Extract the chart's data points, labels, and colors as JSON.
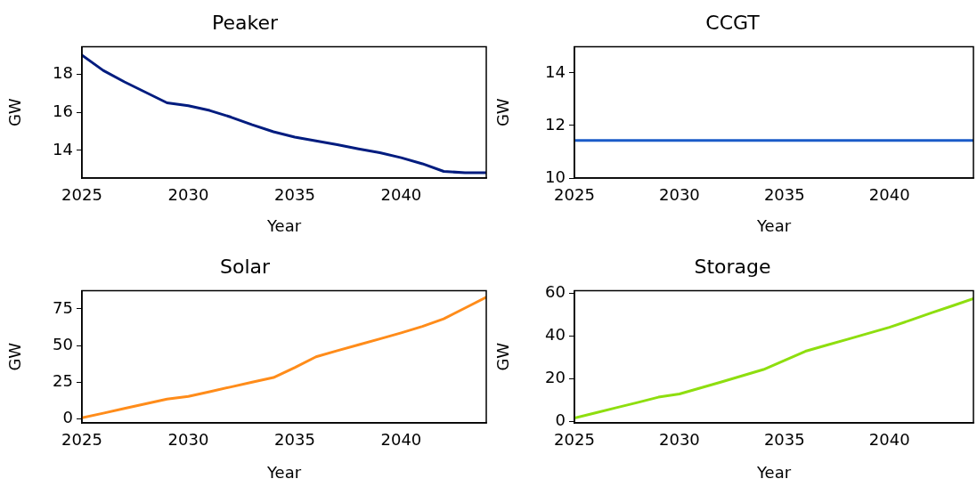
{
  "chart_data": [
    {
      "type": "line",
      "title": "Peaker",
      "xlabel": "Year",
      "ylabel": "GW",
      "x": [
        2025,
        2026,
        2027,
        2028,
        2029,
        2030,
        2031,
        2032,
        2033,
        2034,
        2035,
        2036,
        2037,
        2038,
        2039,
        2040,
        2041,
        2042,
        2043,
        2044
      ],
      "xlim": [
        2025,
        2044
      ],
      "xticks": [
        2025,
        2030,
        2035,
        2040
      ],
      "ylim": [
        12.55,
        19.45
      ],
      "yticks": [
        14,
        16,
        18
      ],
      "grid": false,
      "legend": false,
      "series": [
        {
          "color": "#001c7f",
          "values": [
            19.0,
            18.2,
            17.6,
            17.05,
            16.5,
            16.35,
            16.1,
            15.75,
            15.35,
            14.98,
            14.7,
            14.5,
            14.3,
            14.08,
            13.88,
            13.62,
            13.3,
            12.9,
            12.83,
            12.83
          ]
        }
      ]
    },
    {
      "type": "line",
      "title": "CCGT",
      "xlabel": "Year",
      "ylabel": "GW",
      "x": [
        2025,
        2026,
        2027,
        2028,
        2029,
        2030,
        2031,
        2032,
        2033,
        2034,
        2035,
        2036,
        2037,
        2038,
        2039,
        2040,
        2041,
        2042,
        2043,
        2044
      ],
      "xlim": [
        2025,
        2044
      ],
      "xticks": [
        2025,
        2030,
        2035,
        2040
      ],
      "ylim": [
        10,
        15
      ],
      "yticks": [
        10,
        12,
        14
      ],
      "grid": false,
      "legend": false,
      "series": [
        {
          "color": "#1a5bc8",
          "values": [
            11.43,
            11.43,
            11.43,
            11.43,
            11.43,
            11.43,
            11.43,
            11.43,
            11.43,
            11.43,
            11.43,
            11.43,
            11.43,
            11.43,
            11.43,
            11.43,
            11.43,
            11.43,
            11.43,
            11.43
          ]
        }
      ]
    },
    {
      "type": "line",
      "title": "Solar",
      "xlabel": "Year",
      "ylabel": "GW",
      "x": [
        2025,
        2026,
        2027,
        2028,
        2029,
        2030,
        2031,
        2032,
        2033,
        2034,
        2035,
        2036,
        2037,
        2038,
        2039,
        2040,
        2041,
        2042,
        2043,
        2044
      ],
      "xlim": [
        2025,
        2044
      ],
      "xticks": [
        2025,
        2030,
        2035,
        2040
      ],
      "ylim": [
        -2.7,
        87.4
      ],
      "yticks": [
        0,
        25,
        50,
        75
      ],
      "grid": false,
      "legend": false,
      "series": [
        {
          "color": "#ff8c1a",
          "values": [
            0.7,
            3.9,
            7.1,
            10.3,
            13.5,
            15.3,
            18.5,
            21.8,
            25,
            28.2,
            35,
            42.3,
            46.5,
            50.5,
            54.5,
            58.6,
            63,
            68.2,
            75.5,
            82.9
          ]
        }
      ]
    },
    {
      "type": "line",
      "title": "Storage",
      "xlabel": "Year",
      "ylabel": "GW",
      "x": [
        2025,
        2026,
        2027,
        2028,
        2029,
        2030,
        2031,
        2032,
        2033,
        2034,
        2035,
        2036,
        2037,
        2038,
        2039,
        2040,
        2041,
        2042,
        2043,
        2044
      ],
      "xlim": [
        2025,
        2044
      ],
      "xticks": [
        2025,
        2030,
        2035,
        2040
      ],
      "ylim": [
        -0.6,
        61.1
      ],
      "yticks": [
        0,
        20,
        40,
        60
      ],
      "grid": false,
      "legend": false,
      "series": [
        {
          "color": "#8ede0f",
          "values": [
            1.7,
            4.1,
            6.5,
            8.9,
            11.4,
            12.9,
            15.7,
            18.5,
            21.4,
            24.3,
            28.5,
            32.8,
            35.6,
            38.4,
            41.2,
            44.0,
            47.3,
            50.7,
            54,
            57.4
          ]
        }
      ]
    }
  ]
}
